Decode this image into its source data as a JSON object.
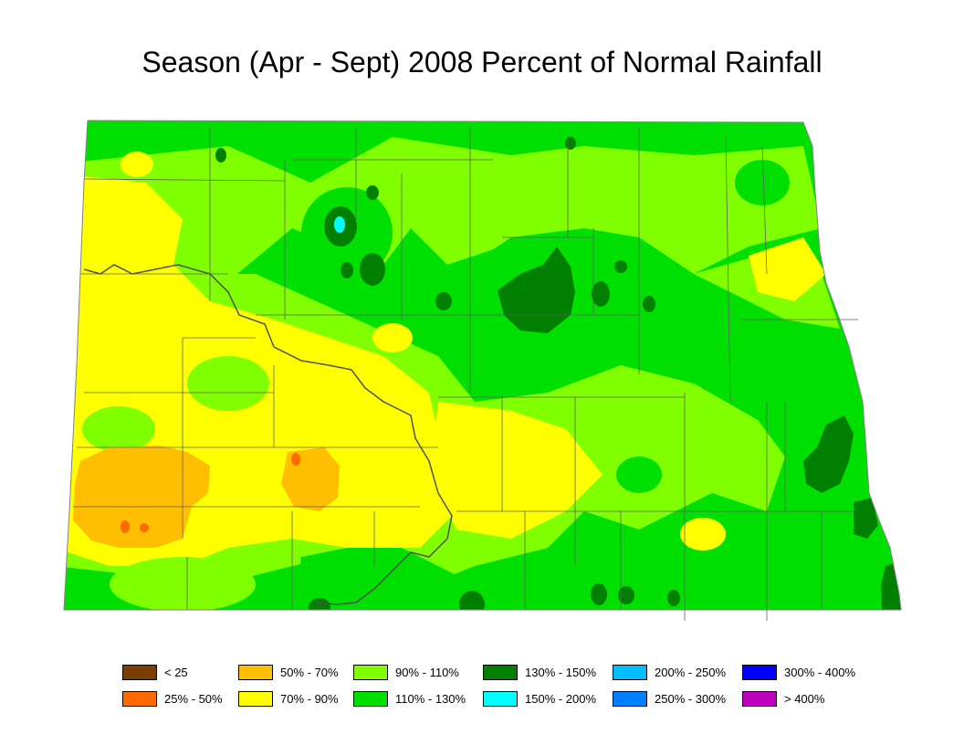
{
  "title": "Season (Apr - Sept) 2008 Percent of Normal Rainfall",
  "legend": [
    {
      "label": "< 25",
      "color": "#7a3f00"
    },
    {
      "label": "25% - 50%",
      "color": "#ff6a00"
    },
    {
      "label": "50% - 70%",
      "color": "#ffbf00"
    },
    {
      "label": "70% - 90%",
      "color": "#ffff00"
    },
    {
      "label": "90% - 110%",
      "color": "#80ff00"
    },
    {
      "label": "110% - 130%",
      "color": "#00e000"
    },
    {
      "label": "130% - 150%",
      "color": "#008000"
    },
    {
      "label": "150% - 200%",
      "color": "#00ffff"
    },
    {
      "label": "200% - 250%",
      "color": "#00bfff"
    },
    {
      "label": "250% - 300%",
      "color": "#0080ff"
    },
    {
      "label": "300% - 400%",
      "color": "#0000ff"
    },
    {
      "label": "> 400%",
      "color": "#bf00bf"
    }
  ]
}
